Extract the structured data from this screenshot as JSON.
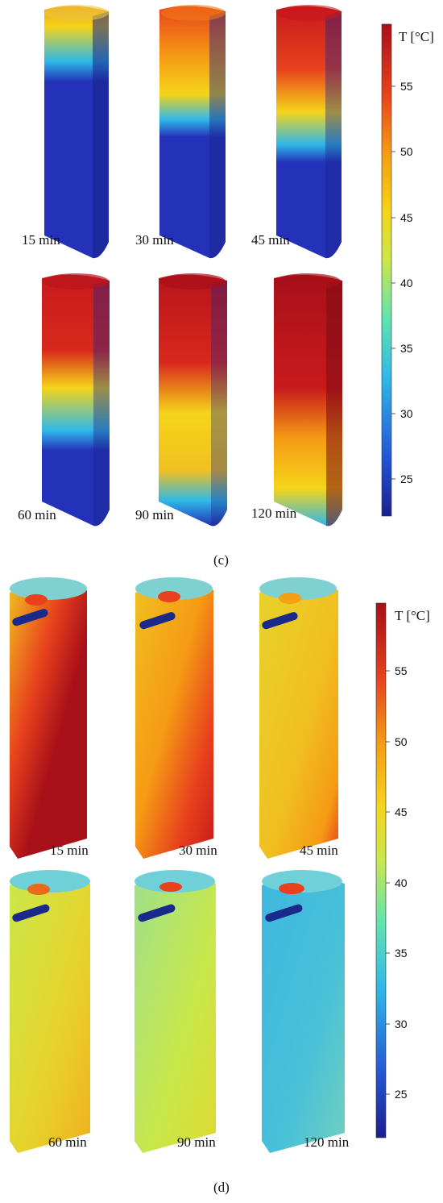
{
  "panels": [
    {
      "label": "(c)",
      "colorbar": {
        "title": "T [°C]",
        "ticks": [
          "55",
          "50",
          "45",
          "40",
          "35",
          "30",
          "25"
        ]
      },
      "times": [
        "15 min",
        "30 min",
        "45 min",
        "60 min",
        "90 min",
        "120 min"
      ]
    },
    {
      "label": "(d)",
      "colorbar": {
        "title": "T [°C]",
        "ticks": [
          "55",
          "50",
          "45",
          "40",
          "35",
          "30",
          "25"
        ]
      },
      "times": [
        "15 min",
        "30 min",
        "45 min",
        "60 min",
        "90 min",
        "120 min"
      ]
    }
  ],
  "colormap": [
    "#1a1f8f",
    "#2456d6",
    "#2fb8e8",
    "#5fe3b0",
    "#c9e84a",
    "#f5d419",
    "#f59a14",
    "#e8411c",
    "#a8101a"
  ]
}
